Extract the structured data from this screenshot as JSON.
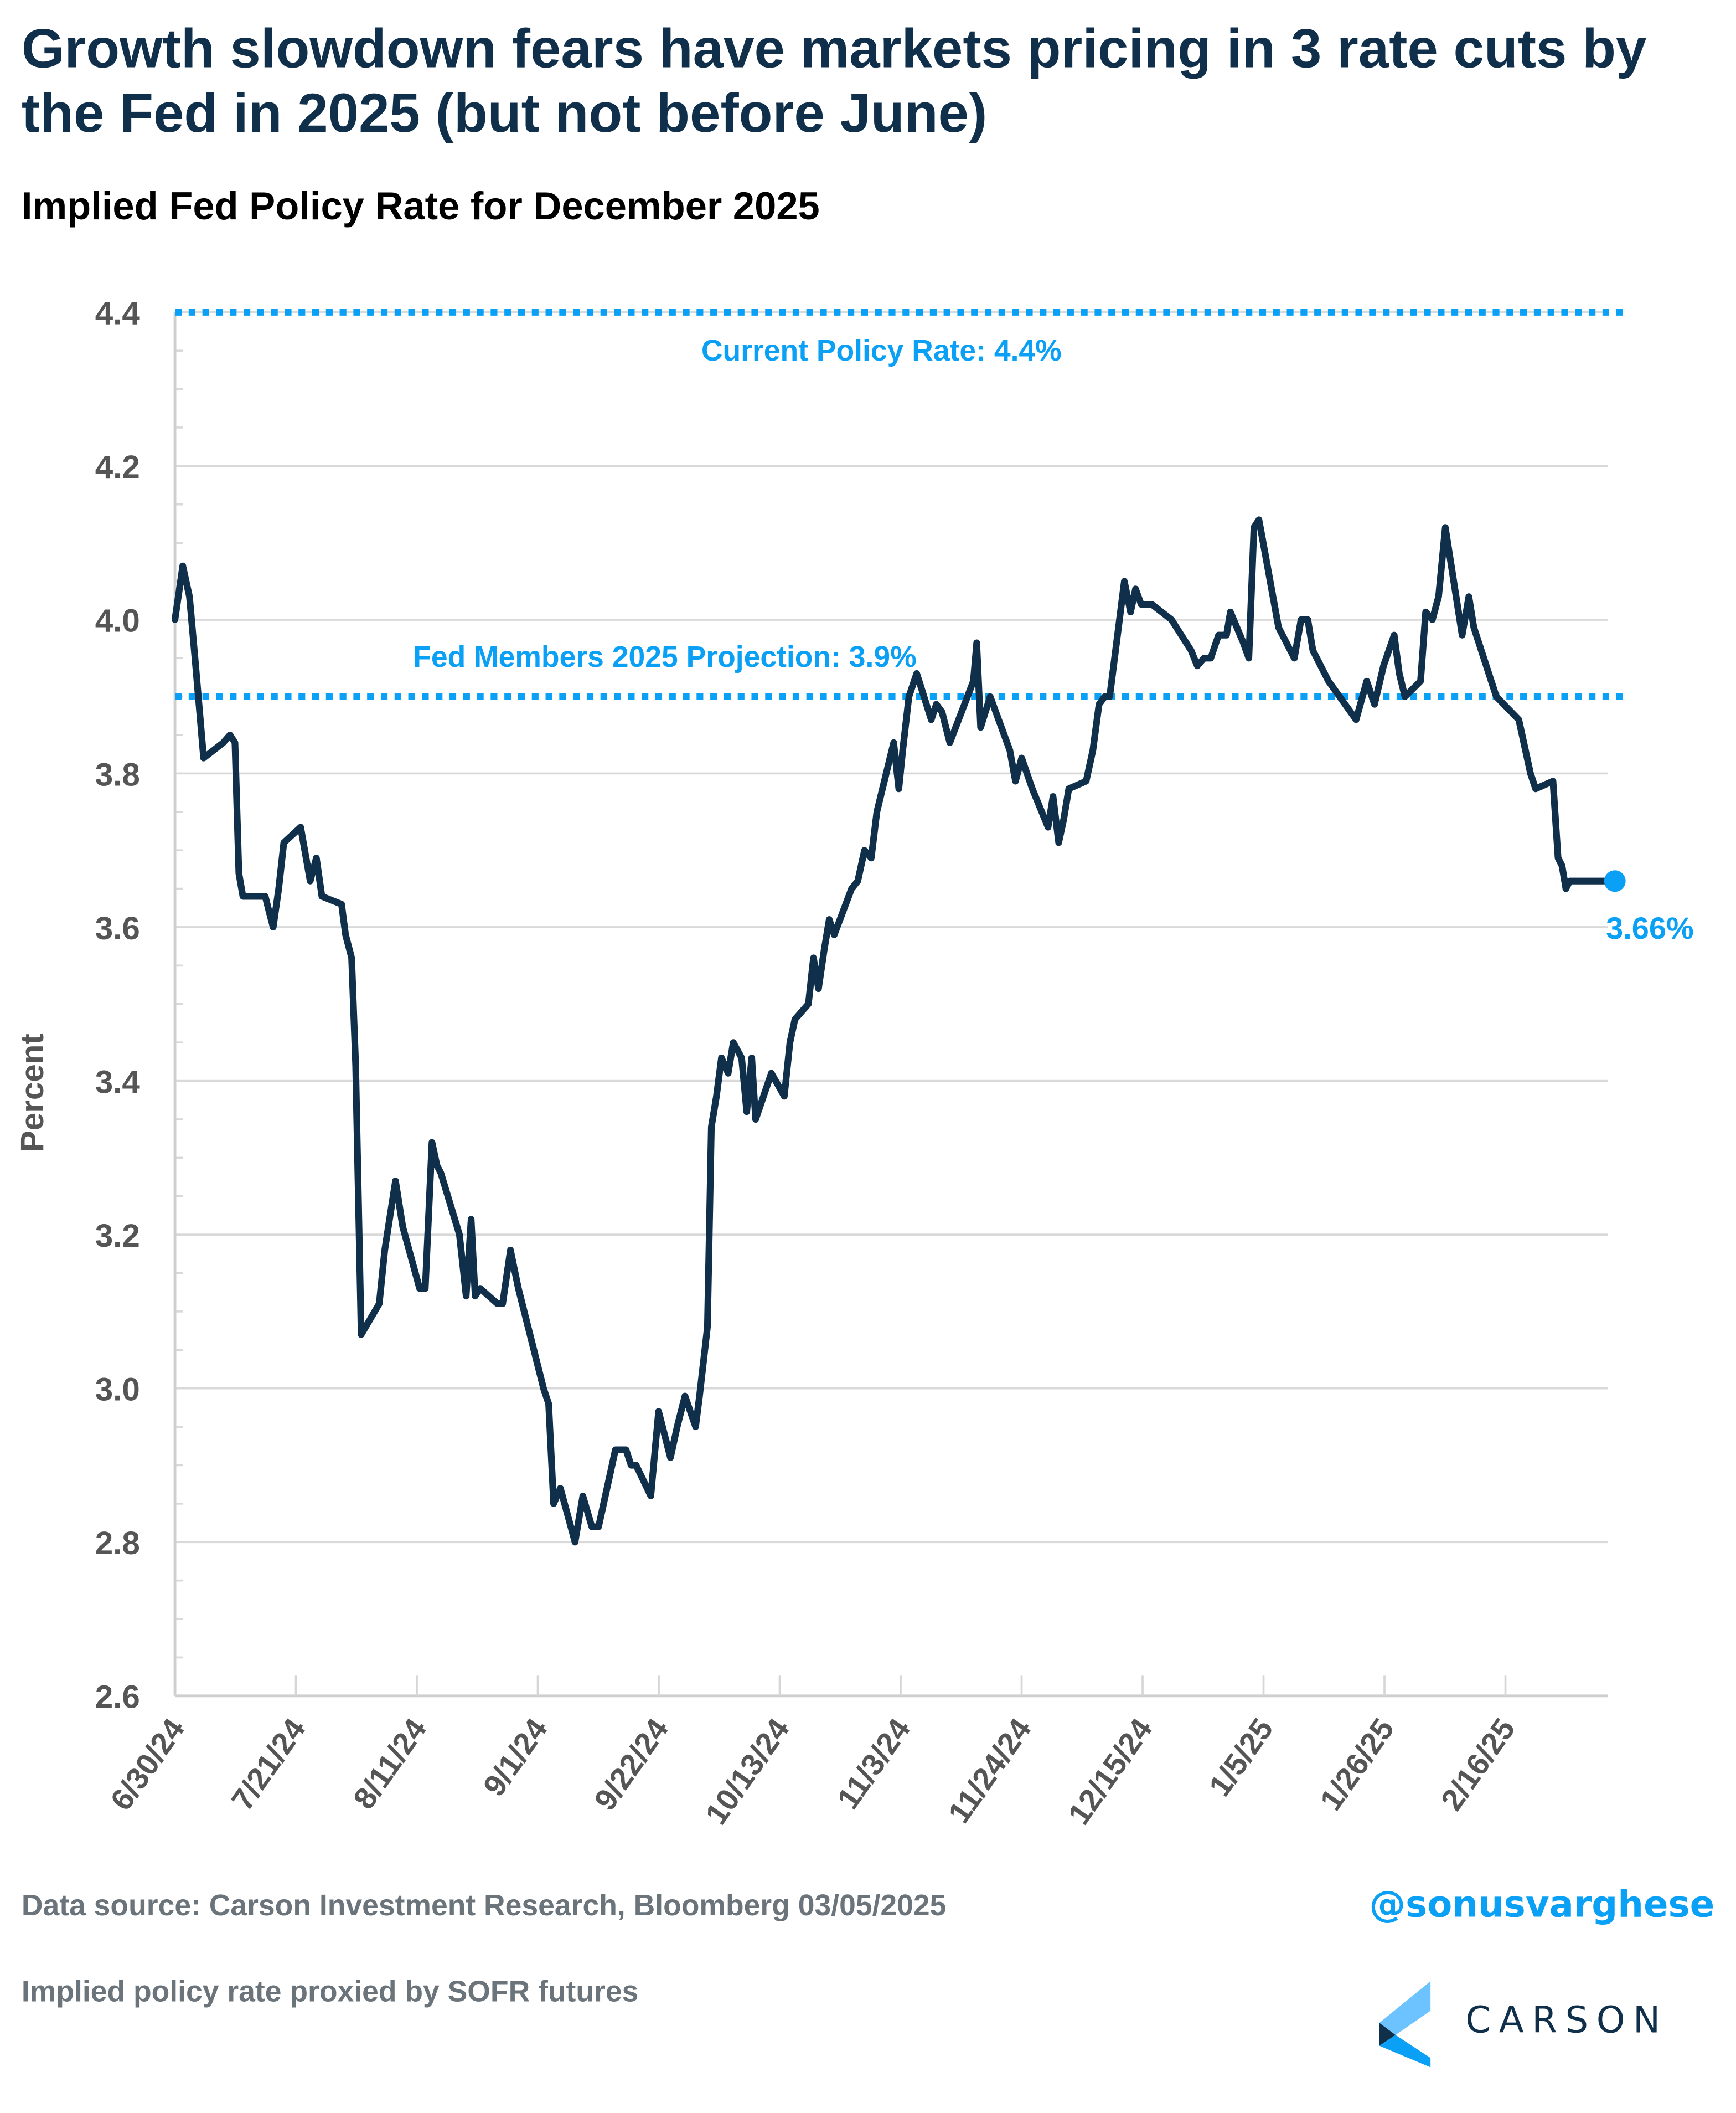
{
  "header": {
    "title": "Growth slowdown fears have markets pricing in 3 rate cuts by the Fed in 2025 (but not before June)",
    "subtitle": "Implied Fed Policy Rate for December 2025"
  },
  "footer": {
    "source": "Data source: Carson Investment Research, Bloomberg   03/05/2025",
    "note": "Implied policy rate proxied by SOFR futures",
    "handle": "@sonusvarghese",
    "logo_text": "CARSON"
  },
  "colors": {
    "line": "#0f2f4b",
    "accent": "#0aa0f5",
    "grid": "#d9d9d9",
    "axis_text": "#555555"
  },
  "chart_data": {
    "type": "line",
    "title": "Implied Fed Policy Rate for December 2025",
    "xlabel": "",
    "ylabel": "Percent",
    "ylim": [
      2.6,
      4.4
    ],
    "yticks": [
      "2.6",
      "2.8",
      "3.0",
      "3.2",
      "3.4",
      "3.6",
      "3.8",
      "4.0",
      "4.2",
      "4.4"
    ],
    "grid": true,
    "x_start_date": "6/30/24",
    "x_range_days": [
      0,
      249
    ],
    "xticks": [
      {
        "label": "6/30/24",
        "day": 0
      },
      {
        "label": "7/21/24",
        "day": 21
      },
      {
        "label": "8/11/24",
        "day": 42
      },
      {
        "label": "9/1/24",
        "day": 63
      },
      {
        "label": "9/22/24",
        "day": 84
      },
      {
        "label": "10/13/24",
        "day": 105
      },
      {
        "label": "11/3/24",
        "day": 126
      },
      {
        "label": "11/24/24",
        "day": 147
      },
      {
        "label": "12/15/24",
        "day": 168
      },
      {
        "label": "1/5/25",
        "day": 189
      },
      {
        "label": "1/26/25",
        "day": 210
      },
      {
        "label": "2/16/25",
        "day": 231
      }
    ],
    "reference_lines": [
      {
        "label": "Current Policy Rate: 4.4%",
        "value": 4.4
      },
      {
        "label": "Fed Members 2025 Projection: 3.9%",
        "value": 3.9
      }
    ],
    "end_label": "3.66%",
    "end_value": 3.66,
    "series": [
      {
        "name": "Implied Fed Policy Rate for December 2025",
        "days": [
          0,
          1.4,
          2.6,
          3.7,
          5.1,
          8.6,
          9.8,
          10.7,
          11.4,
          12.1,
          16.1,
          16.8,
          17.5,
          18.5,
          19.4,
          22.4,
          24.1,
          25.2,
          26.2,
          29.7,
          30.4,
          31.5,
          32.2,
          33.2,
          36.4,
          37.4,
          39.3,
          39.3,
          40.6,
          43.6,
          44.6,
          45.8,
          46.7,
          47.4,
          50.7,
          51.9,
          52.8,
          53.5,
          54.4,
          57.5,
          58.4,
          59.8,
          61.2,
          65.7,
          66.6,
          67.5,
          68.7,
          71.3,
          72.7,
          74.3,
          75.5,
          78.5,
          80.4,
          81.3,
          82.2,
          84.8,
          86.2,
          88.3,
          89.5,
          90.9,
          92.8,
          93.5,
          94.9,
          95.6,
          96.5,
          97.4,
          98.6,
          99.5,
          101.0,
          101.9,
          102.8,
          103.5,
          106.3,
          108.6,
          109.6,
          110.5,
          112.9,
          113.8,
          114.7,
          115.7,
          116.6,
          117.5,
          120.6,
          121.7,
          122.9,
          124.1,
          125.1,
          128.1,
          129.0,
          129.7,
          130.8,
          132.2,
          134.8,
          135.7,
          136.7,
          138.1,
          142.3,
          142.9,
          143.6,
          145.3,
          148.8,
          149.8,
          150.9,
          152.8,
          155.6,
          156.5,
          157.5,
          158.4,
          159.3,
          162.4,
          163.6,
          164.7,
          165.7,
          166.6,
          169.2,
          170.3,
          171.2,
          172.2,
          174.1,
          177.6,
          181.1,
          182.2,
          183.4,
          184.6,
          186.0,
          187.4,
          188.1,
          190.4,
          191.4,
          192.3,
          193.2,
          194.2,
          196.7,
          199.5,
          200.7,
          201.9,
          202.8,
          205.6,
          210.5,
          212.4,
          213.8,
          215.4,
          217.3,
          218.2,
          219.2,
          222.0,
          222.9,
          224.1,
          225.2,
          226.4,
          229.4,
          230.6,
          231.5,
          235.5,
          239.5,
          241.6,
          242.5,
          245.6,
          246.5,
          247.2,
          247.9,
          248.6,
          251.6,
          252.8,
          255.6
        ],
        "values": [
          4.0,
          4.07,
          4.03,
          3.94,
          3.82,
          3.84,
          3.85,
          3.84,
          3.67,
          3.64,
          3.64,
          3.62,
          3.6,
          3.65,
          3.71,
          3.73,
          3.66,
          3.69,
          3.64,
          3.63,
          3.59,
          3.56,
          3.42,
          3.07,
          3.11,
          3.18,
          3.27,
          3.27,
          3.21,
          3.13,
          3.13,
          3.32,
          3.29,
          3.28,
          3.2,
          3.12,
          3.22,
          3.12,
          3.13,
          3.11,
          3.11,
          3.18,
          3.13,
          3.0,
          2.98,
          2.85,
          2.87,
          2.8,
          2.86,
          2.82,
          2.82,
          2.92,
          2.92,
          2.9,
          2.9,
          2.86,
          2.97,
          2.91,
          2.95,
          2.99,
          2.95,
          2.99,
          3.08,
          3.34,
          3.38,
          3.43,
          3.41,
          3.45,
          3.43,
          3.36,
          3.43,
          3.35,
          3.41,
          3.38,
          3.45,
          3.48,
          3.5,
          3.56,
          3.52,
          3.57,
          3.61,
          3.59,
          3.65,
          3.66,
          3.7,
          3.69,
          3.75,
          3.84,
          3.78,
          3.83,
          3.9,
          3.93,
          3.87,
          3.89,
          3.88,
          3.84,
          3.92,
          3.97,
          3.86,
          3.9,
          3.83,
          3.79,
          3.82,
          3.78,
          3.73,
          3.77,
          3.71,
          3.74,
          3.78,
          3.79,
          3.83,
          3.89,
          3.9,
          3.9,
          4.05,
          4.01,
          4.04,
          4.02,
          4.02,
          4.0,
          3.96,
          3.94,
          3.95,
          3.95,
          3.98,
          3.98,
          4.01,
          3.97,
          3.95,
          4.12,
          4.13,
          4.09,
          3.99,
          3.95,
          4.0,
          4.0,
          3.96,
          3.92,
          3.87,
          3.92,
          3.89,
          3.94,
          3.98,
          3.93,
          3.9,
          3.92,
          4.01,
          4.0,
          4.03,
          4.12,
          3.98,
          4.03,
          3.99,
          3.9,
          3.87,
          3.8,
          3.78,
          3.79,
          3.69,
          3.68,
          3.65,
          3.66,
          3.66,
          3.66,
          3.66
        ]
      }
    ]
  }
}
